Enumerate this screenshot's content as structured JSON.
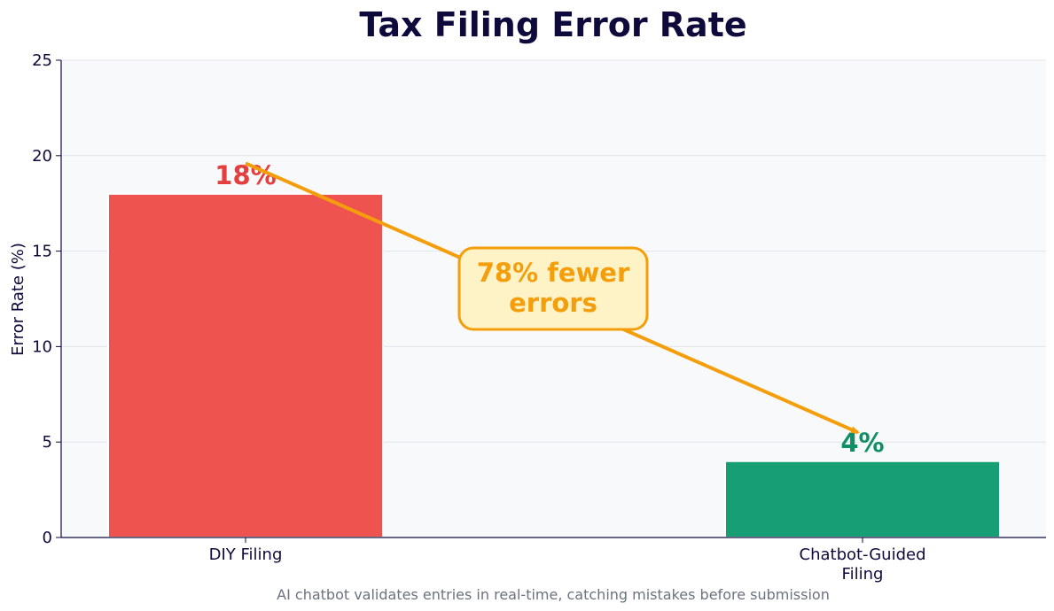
{
  "chart_data": {
    "type": "bar",
    "title": "Tax Filing Error Rate",
    "ylabel": "Error Rate (%)",
    "xlabel": "",
    "ylim": [
      0,
      25
    ],
    "yticks": [
      0,
      5,
      10,
      15,
      20,
      25
    ],
    "grid": true,
    "categories": [
      "DIY Filing",
      "Chatbot-Guided\nFiling"
    ],
    "values": [
      18,
      4
    ],
    "value_labels": [
      "18%",
      "4%"
    ],
    "colors": [
      "#ef5350",
      "#189e74"
    ],
    "label_colors": [
      "#e53e3e",
      "#0f8f66"
    ],
    "annotation": {
      "text": "78% fewer\nerrors",
      "from": {
        "category": 0,
        "value": 19.6
      },
      "to": {
        "category": 1,
        "value": 5.5
      },
      "color": "#f59e0b",
      "box_fill": "#fef3c7"
    },
    "caption": "AI chatbot validates entries in real-time, catching mistakes before submission"
  }
}
